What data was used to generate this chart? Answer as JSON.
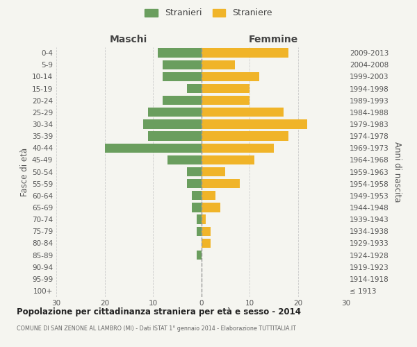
{
  "age_groups": [
    "100+",
    "95-99",
    "90-94",
    "85-89",
    "80-84",
    "75-79",
    "70-74",
    "65-69",
    "60-64",
    "55-59",
    "50-54",
    "45-49",
    "40-44",
    "35-39",
    "30-34",
    "25-29",
    "20-24",
    "15-19",
    "10-14",
    "5-9",
    "0-4"
  ],
  "birth_years": [
    "≤ 1913",
    "1914-1918",
    "1919-1923",
    "1924-1928",
    "1929-1933",
    "1934-1938",
    "1939-1943",
    "1944-1948",
    "1949-1953",
    "1954-1958",
    "1959-1963",
    "1964-1968",
    "1969-1973",
    "1974-1978",
    "1979-1983",
    "1984-1988",
    "1989-1993",
    "1994-1998",
    "1999-2003",
    "2004-2008",
    "2009-2013"
  ],
  "males": [
    0,
    0,
    0,
    1,
    0,
    1,
    1,
    2,
    2,
    3,
    3,
    7,
    20,
    11,
    12,
    11,
    8,
    3,
    8,
    8,
    9
  ],
  "females": [
    0,
    0,
    0,
    0,
    2,
    2,
    1,
    4,
    3,
    8,
    5,
    11,
    15,
    18,
    22,
    17,
    10,
    10,
    12,
    7,
    18
  ],
  "male_color": "#6a9e5e",
  "female_color": "#f0b429",
  "background_color": "#f5f5f0",
  "grid_color": "#cccccc",
  "title": "Popolazione per cittadinanza straniera per età e sesso - 2014",
  "subtitle": "COMUNE DI SAN ZENONE AL LAMBRO (MI) - Dati ISTAT 1° gennaio 2014 - Elaborazione TUTTITALIA.IT",
  "ylabel_left": "Fasce di età",
  "ylabel_right": "Anni di nascita",
  "header_maschi": "Maschi",
  "header_femmine": "Femmine",
  "legend_stranieri": "Stranieri",
  "legend_straniere": "Straniere",
  "xlim": 30
}
